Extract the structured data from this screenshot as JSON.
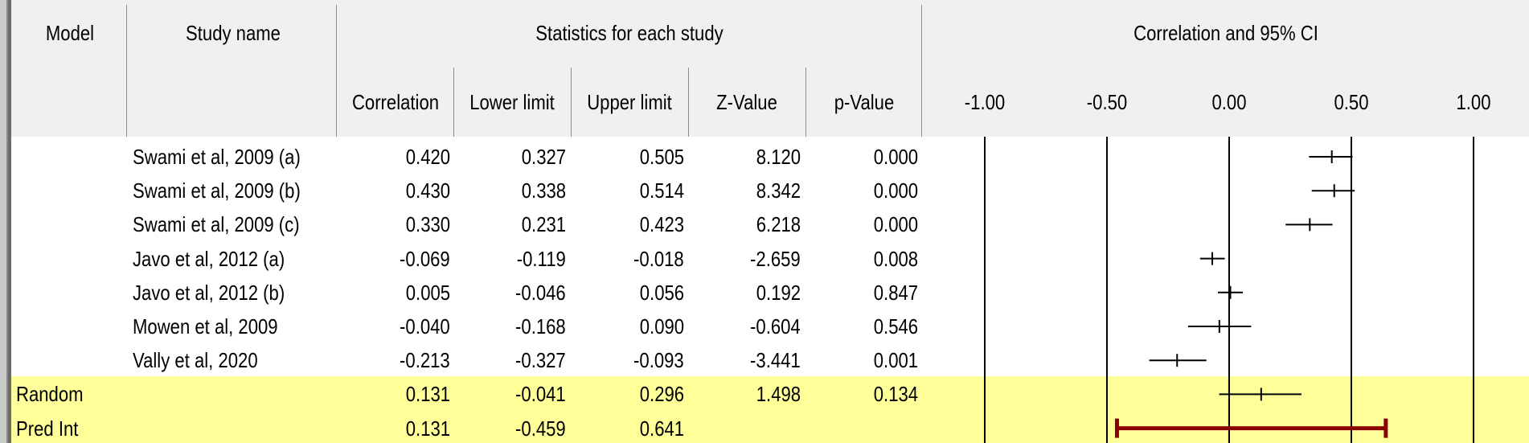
{
  "header": {
    "model": "Model",
    "study_name": "Study name",
    "stats_group": "Statistics for each study",
    "plot_group": "Correlation and 95% CI",
    "columns": [
      "Correlation",
      "Lower limit",
      "Upper limit",
      "Z-Value",
      "p-Value"
    ],
    "axis_ticks": [
      "-1.00",
      "-0.50",
      "0.00",
      "0.50",
      "1.00"
    ]
  },
  "rows": [
    {
      "model": "",
      "study": "Swami et al, 2009 (a)",
      "correlation": "0.420",
      "lower": "0.327",
      "upper": "0.505",
      "z": "8.120",
      "p": "0.000"
    },
    {
      "model": "",
      "study": "Swami et al, 2009 (b)",
      "correlation": "0.430",
      "lower": "0.338",
      "upper": "0.514",
      "z": "8.342",
      "p": "0.000"
    },
    {
      "model": "",
      "study": "Swami et al, 2009 (c)",
      "correlation": "0.330",
      "lower": "0.231",
      "upper": "0.423",
      "z": "6.218",
      "p": "0.000"
    },
    {
      "model": "",
      "study": "Javo et al, 2012 (a)",
      "correlation": "-0.069",
      "lower": "-0.119",
      "upper": "-0.018",
      "z": "-2.659",
      "p": "0.008"
    },
    {
      "model": "",
      "study": "Javo et al, 2012 (b)",
      "correlation": "0.005",
      "lower": "-0.046",
      "upper": "0.056",
      "z": "0.192",
      "p": "0.847"
    },
    {
      "model": "",
      "study": "Mowen et al, 2009",
      "correlation": "-0.040",
      "lower": "-0.168",
      "upper": "0.090",
      "z": "-0.604",
      "p": "0.546"
    },
    {
      "model": "",
      "study": "Vally et al, 2020",
      "correlation": "-0.213",
      "lower": "-0.327",
      "upper": "-0.093",
      "z": "-3.441",
      "p": "0.001"
    },
    {
      "model": "Random",
      "study": "",
      "correlation": "0.131",
      "lower": "-0.041",
      "upper": "0.296",
      "z": "1.498",
      "p": "0.134"
    },
    {
      "model": "Pred Int",
      "study": "",
      "correlation": "0.131",
      "lower": "-0.459",
      "upper": "0.641",
      "z": "",
      "p": ""
    }
  ],
  "chart_data": {
    "type": "forest",
    "xlim": [
      -1.0,
      1.0
    ],
    "ticks": [
      -1.0,
      -0.5,
      0.0,
      0.5,
      1.0
    ],
    "studies": [
      {
        "name": "Swami et al, 2009 (a)",
        "estimate": 0.42,
        "lower": 0.327,
        "upper": 0.505
      },
      {
        "name": "Swami et al, 2009 (b)",
        "estimate": 0.43,
        "lower": 0.338,
        "upper": 0.514
      },
      {
        "name": "Swami et al, 2009 (c)",
        "estimate": 0.33,
        "lower": 0.231,
        "upper": 0.423
      },
      {
        "name": "Javo et al, 2012 (a)",
        "estimate": -0.069,
        "lower": -0.119,
        "upper": -0.018
      },
      {
        "name": "Javo et al, 2012 (b)",
        "estimate": 0.005,
        "lower": -0.046,
        "upper": 0.056
      },
      {
        "name": "Mowen et al, 2009",
        "estimate": -0.04,
        "lower": -0.168,
        "upper": 0.09
      },
      {
        "name": "Vally et al, 2020",
        "estimate": -0.213,
        "lower": -0.327,
        "upper": -0.093
      }
    ],
    "summary": {
      "name": "Random",
      "estimate": 0.131,
      "lower": -0.041,
      "upper": 0.296
    },
    "prediction_interval": {
      "name": "Pred Int",
      "lower": -0.459,
      "upper": 0.641,
      "color": "#8b0000"
    },
    "highlight_color": "#ffff99"
  }
}
